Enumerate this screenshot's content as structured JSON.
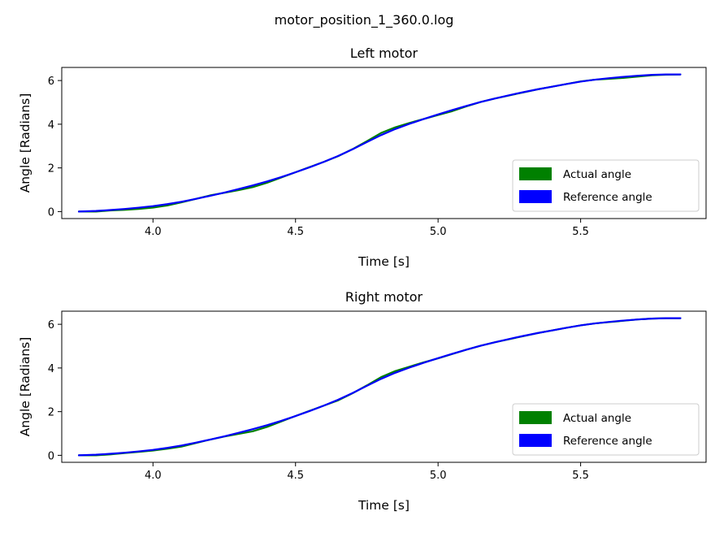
{
  "figure": {
    "suptitle": "motor_position_1_360.0.log"
  },
  "colors": {
    "actual": "#008000",
    "reference": "#0000ff"
  },
  "chart_data": [
    {
      "type": "line",
      "title": "Left motor",
      "xlabel": "Time [s]",
      "ylabel": "Angle [Radians]",
      "xlim": [
        3.68,
        5.94
      ],
      "ylim": [
        -0.32,
        6.6
      ],
      "xticks": [
        4.0,
        4.5,
        5.0,
        5.5
      ],
      "xtick_labels": [
        "4.0",
        "4.5",
        "5.0",
        "5.5"
      ],
      "yticks": [
        0,
        2,
        4,
        6
      ],
      "ytick_labels": [
        "0",
        "2",
        "4",
        "6"
      ],
      "legend": {
        "position": "lower-right",
        "entries": [
          "Actual angle",
          "Reference angle"
        ]
      },
      "series": [
        {
          "name": "Actual angle",
          "color": "#008000",
          "x": [
            3.74,
            3.8,
            3.85,
            3.9,
            3.95,
            4.0,
            4.05,
            4.1,
            4.15,
            4.2,
            4.25,
            4.3,
            4.35,
            4.4,
            4.45,
            4.5,
            4.55,
            4.6,
            4.65,
            4.7,
            4.75,
            4.8,
            4.85,
            4.9,
            4.95,
            5.0,
            5.05,
            5.1,
            5.15,
            5.2,
            5.25,
            5.3,
            5.35,
            5.4,
            5.45,
            5.5,
            5.55,
            5.6,
            5.65,
            5.7,
            5.75,
            5.8,
            5.85
          ],
          "y": [
            0.0,
            0.0,
            0.05,
            0.08,
            0.12,
            0.18,
            0.28,
            0.42,
            0.58,
            0.74,
            0.86,
            0.98,
            1.12,
            1.32,
            1.56,
            1.8,
            2.04,
            2.28,
            2.54,
            2.86,
            3.22,
            3.6,
            3.86,
            4.06,
            4.24,
            4.42,
            4.6,
            4.82,
            5.02,
            5.18,
            5.32,
            5.46,
            5.6,
            5.72,
            5.84,
            5.96,
            6.04,
            6.08,
            6.12,
            6.18,
            6.24,
            6.27,
            6.28
          ]
        },
        {
          "name": "Reference angle",
          "color": "#0000ff",
          "x": [
            3.74,
            3.8,
            3.85,
            3.9,
            3.95,
            4.0,
            4.05,
            4.1,
            4.15,
            4.2,
            4.25,
            4.3,
            4.35,
            4.4,
            4.45,
            4.5,
            4.55,
            4.6,
            4.65,
            4.7,
            4.75,
            4.8,
            4.85,
            4.9,
            4.95,
            5.0,
            5.05,
            5.1,
            5.15,
            5.2,
            5.25,
            5.3,
            5.35,
            5.4,
            5.45,
            5.5,
            5.55,
            5.6,
            5.65,
            5.7,
            5.75,
            5.8,
            5.85
          ],
          "y": [
            0.0,
            0.03,
            0.07,
            0.12,
            0.18,
            0.25,
            0.34,
            0.45,
            0.58,
            0.72,
            0.87,
            1.03,
            1.2,
            1.38,
            1.58,
            1.8,
            2.03,
            2.28,
            2.55,
            2.85,
            3.18,
            3.5,
            3.78,
            4.02,
            4.24,
            4.45,
            4.65,
            4.84,
            5.02,
            5.18,
            5.33,
            5.47,
            5.6,
            5.72,
            5.84,
            5.95,
            6.04,
            6.11,
            6.17,
            6.22,
            6.26,
            6.28,
            6.28
          ]
        }
      ]
    },
    {
      "type": "line",
      "title": "Right motor",
      "xlabel": "Time [s]",
      "ylabel": "Angle [Radians]",
      "xlim": [
        3.68,
        5.94
      ],
      "ylim": [
        -0.32,
        6.6
      ],
      "xticks": [
        4.0,
        4.5,
        5.0,
        5.5
      ],
      "xtick_labels": [
        "4.0",
        "4.5",
        "5.0",
        "5.5"
      ],
      "yticks": [
        0,
        2,
        4,
        6
      ],
      "ytick_labels": [
        "0",
        "2",
        "4",
        "6"
      ],
      "legend": {
        "position": "lower-right",
        "entries": [
          "Actual angle",
          "Reference angle"
        ]
      },
      "series": [
        {
          "name": "Actual angle",
          "color": "#008000",
          "x": [
            3.74,
            3.8,
            3.85,
            3.9,
            3.95,
            4.0,
            4.05,
            4.1,
            4.15,
            4.2,
            4.25,
            4.3,
            4.35,
            4.4,
            4.45,
            4.5,
            4.55,
            4.6,
            4.65,
            4.7,
            4.75,
            4.8,
            4.85,
            4.9,
            4.95,
            5.0,
            5.05,
            5.1,
            5.15,
            5.2,
            5.25,
            5.3,
            5.35,
            5.4,
            5.45,
            5.5,
            5.55,
            5.6,
            5.65,
            5.7,
            5.75,
            5.8,
            5.85
          ],
          "y": [
            0.0,
            0.0,
            0.04,
            0.1,
            0.16,
            0.22,
            0.3,
            0.4,
            0.56,
            0.72,
            0.86,
            0.98,
            1.1,
            1.3,
            1.55,
            1.8,
            2.04,
            2.28,
            2.52,
            2.84,
            3.2,
            3.58,
            3.86,
            4.06,
            4.26,
            4.44,
            4.64,
            4.84,
            5.02,
            5.18,
            5.32,
            5.46,
            5.6,
            5.72,
            5.84,
            5.95,
            6.04,
            6.1,
            6.16,
            6.22,
            6.26,
            6.28,
            6.28
          ]
        },
        {
          "name": "Reference angle",
          "color": "#0000ff",
          "x": [
            3.74,
            3.8,
            3.85,
            3.9,
            3.95,
            4.0,
            4.05,
            4.1,
            4.15,
            4.2,
            4.25,
            4.3,
            4.35,
            4.4,
            4.45,
            4.5,
            4.55,
            4.6,
            4.65,
            4.7,
            4.75,
            4.8,
            4.85,
            4.9,
            4.95,
            5.0,
            5.05,
            5.1,
            5.15,
            5.2,
            5.25,
            5.3,
            5.35,
            5.4,
            5.45,
            5.5,
            5.55,
            5.6,
            5.65,
            5.7,
            5.75,
            5.8,
            5.85
          ],
          "y": [
            0.0,
            0.03,
            0.07,
            0.12,
            0.18,
            0.25,
            0.34,
            0.45,
            0.58,
            0.72,
            0.87,
            1.03,
            1.2,
            1.38,
            1.58,
            1.8,
            2.03,
            2.28,
            2.55,
            2.85,
            3.18,
            3.5,
            3.78,
            4.02,
            4.24,
            4.45,
            4.65,
            4.84,
            5.02,
            5.18,
            5.33,
            5.47,
            5.6,
            5.72,
            5.84,
            5.95,
            6.04,
            6.11,
            6.17,
            6.22,
            6.26,
            6.28,
            6.28
          ]
        }
      ]
    }
  ]
}
